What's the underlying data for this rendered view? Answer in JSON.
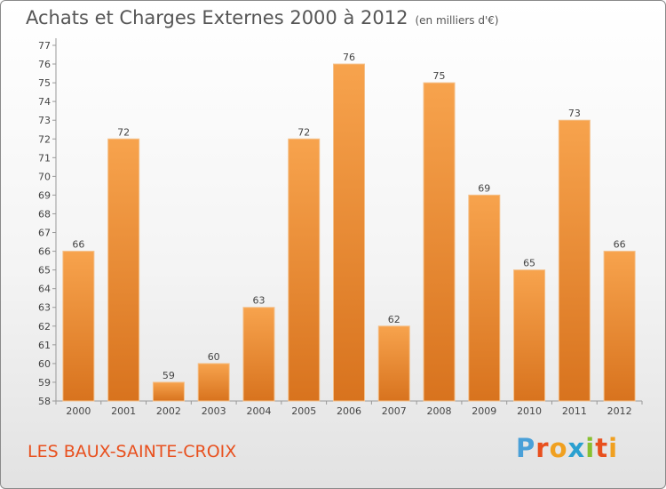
{
  "header": {
    "title": "Achats et Charges Externes 2000 à 2012",
    "subtitle": "(en milliers d'€)"
  },
  "footer": {
    "location": "LES BAUX-SAINTE-CROIX",
    "logo": "Proxiti"
  },
  "colors": {
    "bar_light": "#f7a34d",
    "bar_dark": "#d8731e",
    "location_text": "#e8501e"
  },
  "chart_data": {
    "type": "bar",
    "title": "Achats et Charges Externes 2000 à 2012",
    "subtitle": "(en milliers d'€)",
    "categories": [
      "2000",
      "2001",
      "2002",
      "2003",
      "2004",
      "2005",
      "2006",
      "2007",
      "2008",
      "2009",
      "2010",
      "2011",
      "2012"
    ],
    "values": [
      66,
      72,
      59,
      60,
      63,
      72,
      76,
      62,
      75,
      69,
      65,
      73,
      66
    ],
    "ylim": [
      58,
      77
    ],
    "yticks": [
      58,
      59,
      60,
      61,
      62,
      63,
      64,
      65,
      66,
      67,
      68,
      69,
      70,
      71,
      72,
      73,
      74,
      75,
      76,
      77
    ],
    "grid": false,
    "legend": "none",
    "data_labels": true
  }
}
